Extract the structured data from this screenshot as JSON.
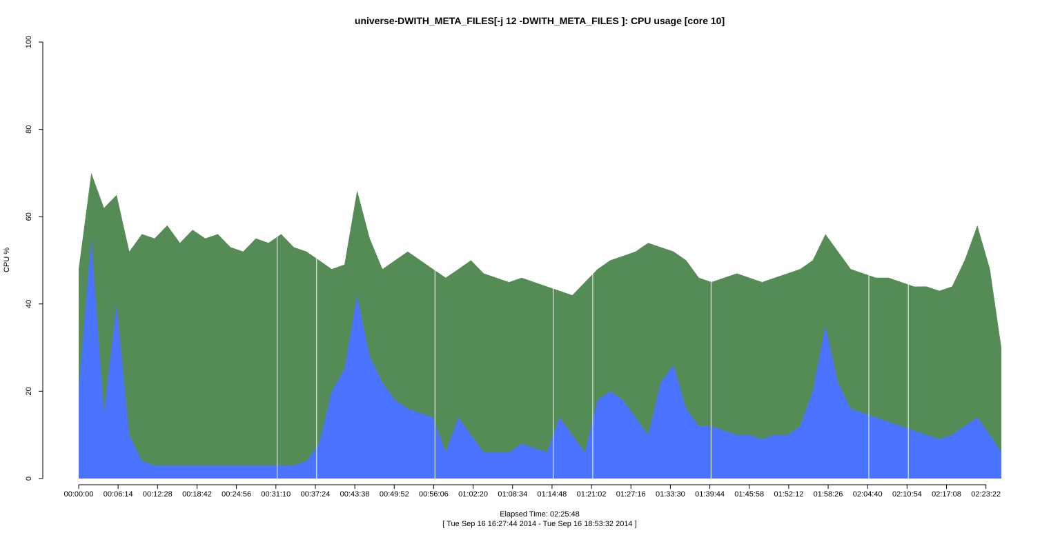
{
  "chart_data": {
    "type": "area",
    "title": "universe-DWITH_META_FILES[-j 12 -DWITH_META_FILES ]: CPU usage [core 10]",
    "xlabel": "Elapsed Time: 02:25:48",
    "xlabel_sub": "[ Tue Sep 16 16:27:44 2014 - Tue Sep 16 18:53:32 2014 ]",
    "ylabel": "CPU %",
    "ylim": [
      0,
      100
    ],
    "xlim_seconds": [
      0,
      8748
    ],
    "y_ticks": [
      "0",
      "20",
      "40",
      "60",
      "80",
      "100"
    ],
    "y_tick_values": [
      0,
      20,
      40,
      60,
      80,
      100
    ],
    "x_ticks": [
      "00:00:00",
      "00:06:14",
      "00:12:28",
      "00:18:42",
      "00:24:56",
      "00:31:10",
      "00:37:24",
      "00:43:38",
      "00:49:52",
      "00:56:06",
      "01:02:20",
      "01:08:34",
      "01:14:48",
      "01:21:02",
      "01:27:16",
      "01:33:30",
      "01:39:44",
      "01:45:58",
      "01:52:12",
      "01:58:26",
      "02:04:40",
      "02:10:54",
      "02:17:08",
      "02:23:22"
    ],
    "x_tick_seconds": [
      0,
      374,
      748,
      1122,
      1496,
      1870,
      2244,
      2618,
      2992,
      3366,
      3740,
      4114,
      4488,
      4862,
      5236,
      5610,
      5984,
      6358,
      6732,
      7106,
      7480,
      7854,
      8228,
      8602
    ],
    "grid": false,
    "legend": "none",
    "colors": {
      "total": "#558b55",
      "bottom_series": "#4a74ff",
      "gap": "#ffffff"
    },
    "x": [
      "00:00:00",
      "00:02:00",
      "00:04:00",
      "00:06:00",
      "00:08:00",
      "00:10:00",
      "00:12:00",
      "00:14:00",
      "00:16:00",
      "00:18:00",
      "00:20:00",
      "00:22:00",
      "00:24:00",
      "00:26:00",
      "00:28:00",
      "00:30:00",
      "00:32:00",
      "00:34:00",
      "00:36:00",
      "00:38:00",
      "00:40:00",
      "00:42:00",
      "00:44:00",
      "00:46:00",
      "00:48:00",
      "00:50:00",
      "00:52:00",
      "00:54:00",
      "00:56:00",
      "00:58:00",
      "01:00:00",
      "01:02:00",
      "01:04:00",
      "01:06:00",
      "01:08:00",
      "01:10:00",
      "01:12:00",
      "01:14:00",
      "01:16:00",
      "01:18:00",
      "01:20:00",
      "01:22:00",
      "01:24:00",
      "01:26:00",
      "01:28:00",
      "01:30:00",
      "01:32:00",
      "01:34:00",
      "01:36:00",
      "01:38:00",
      "01:40:00",
      "01:42:00",
      "01:44:00",
      "01:46:00",
      "01:48:00",
      "01:50:00",
      "01:52:00",
      "01:54:00",
      "01:56:00",
      "01:58:00",
      "02:00:00",
      "02:02:00",
      "02:04:00",
      "02:06:00",
      "02:08:00",
      "02:10:00",
      "02:12:00",
      "02:14:00",
      "02:16:00",
      "02:18:00",
      "02:20:00",
      "02:22:00",
      "02:24:00",
      "02:25:48"
    ],
    "series": [
      {
        "values": [
          48,
          70,
          62,
          65,
          52,
          56,
          55,
          58,
          54,
          57,
          55,
          56,
          53,
          52,
          55,
          54,
          56,
          53,
          52,
          50,
          48,
          49,
          66,
          55,
          48,
          50,
          52,
          50,
          48,
          46,
          48,
          50,
          47,
          46,
          45,
          46,
          45,
          44,
          43,
          42,
          45,
          48,
          50,
          51,
          52,
          54,
          53,
          52,
          50,
          46,
          45,
          46,
          47,
          46,
          45,
          46,
          47,
          48,
          50,
          56,
          52,
          48,
          47,
          46,
          46,
          45,
          44,
          44,
          43,
          44,
          50,
          58,
          48,
          30
        ]
      },
      {
        "values": [
          20,
          55,
          15,
          40,
          10,
          4,
          3,
          3,
          3,
          3,
          3,
          3,
          3,
          3,
          3,
          3,
          3,
          3,
          4,
          8,
          20,
          25,
          42,
          28,
          22,
          18,
          16,
          15,
          14,
          6,
          14,
          10,
          6,
          6,
          6,
          8,
          7,
          6,
          14,
          10,
          6,
          18,
          20,
          18,
          14,
          10,
          22,
          26,
          16,
          12,
          12,
          11,
          10,
          10,
          9,
          10,
          10,
          12,
          20,
          35,
          22,
          16,
          15,
          14,
          13,
          12,
          11,
          10,
          9,
          10,
          12,
          14,
          10,
          6
        ]
      }
    ]
  }
}
